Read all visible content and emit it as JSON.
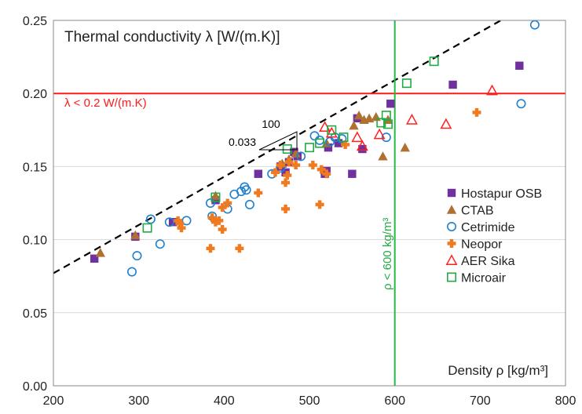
{
  "chart_data": {
    "type": "scatter",
    "title": "Thermal conductivity λ [W/(m.K)]",
    "xlabel": "Density ρ [kg/m³]",
    "ylabel": "",
    "xlim": [
      200,
      800
    ],
    "ylim": [
      0,
      0.25
    ],
    "x_ticks": [
      "200",
      "300",
      "400",
      "500",
      "600",
      "700",
      "800"
    ],
    "y_ticks": [
      "0.00",
      "0.05",
      "0.10",
      "0.15",
      "0.20",
      "0.25"
    ],
    "grid": "horizontal",
    "legend_position": "right",
    "annotations": {
      "h_line": {
        "y": 0.2,
        "label": "λ < 0.2 W/(m.K)",
        "color": "#ff1a1a"
      },
      "v_line": {
        "x": 600,
        "label": "ρ < 600 kg/m³",
        "color": "#22bb44"
      },
      "trend_line": {
        "from": [
          200,
          0.077
        ],
        "to": [
          800,
          0.275
        ],
        "color": "#000000"
      },
      "slope_run": "100",
      "slope_rise": "0.033"
    },
    "series": [
      {
        "name": "Hostapur OSB",
        "marker": "square",
        "color": "#7030a0",
        "points": [
          [
            248,
            0.087
          ],
          [
            296,
            0.102
          ],
          [
            340,
            0.112
          ],
          [
            390,
            0.127
          ],
          [
            440,
            0.145
          ],
          [
            466,
            0.15
          ],
          [
            472,
            0.146
          ],
          [
            476,
            0.153
          ],
          [
            482,
            0.16
          ],
          [
            486,
            0.157
          ],
          [
            518,
            0.145
          ],
          [
            520,
            0.147
          ],
          [
            522,
            0.163
          ],
          [
            534,
            0.166
          ],
          [
            550,
            0.145
          ],
          [
            556,
            0.183
          ],
          [
            562,
            0.162
          ],
          [
            595,
            0.193
          ],
          [
            668,
            0.206
          ],
          [
            746,
            0.219
          ]
        ]
      },
      {
        "name": "CTAB",
        "marker": "triangle",
        "color": "#b07030",
        "points": [
          [
            255,
            0.091
          ],
          [
            296,
            0.103
          ],
          [
            390,
            0.13
          ],
          [
            468,
            0.152
          ],
          [
            476,
            0.155
          ],
          [
            484,
            0.159
          ],
          [
            520,
            0.166
          ],
          [
            552,
            0.178
          ],
          [
            558,
            0.185
          ],
          [
            564,
            0.182
          ],
          [
            570,
            0.183
          ],
          [
            578,
            0.184
          ],
          [
            586,
            0.157
          ],
          [
            592,
            0.182
          ],
          [
            612,
            0.163
          ]
        ]
      },
      {
        "name": "Cetrimide",
        "marker": "circle",
        "color": "#2080d0",
        "points": [
          [
            292,
            0.078
          ],
          [
            298,
            0.089
          ],
          [
            314,
            0.114
          ],
          [
            325,
            0.097
          ],
          [
            336,
            0.112
          ],
          [
            356,
            0.113
          ],
          [
            384,
            0.125
          ],
          [
            386,
            0.116
          ],
          [
            404,
            0.121
          ],
          [
            412,
            0.131
          ],
          [
            420,
            0.133
          ],
          [
            424,
            0.136
          ],
          [
            426,
            0.134
          ],
          [
            430,
            0.124
          ],
          [
            456,
            0.145
          ],
          [
            466,
            0.149
          ],
          [
            490,
            0.157
          ],
          [
            506,
            0.171
          ],
          [
            512,
            0.168
          ],
          [
            524,
            0.167
          ],
          [
            530,
            0.17
          ],
          [
            538,
            0.169
          ],
          [
            590,
            0.17
          ],
          [
            748,
            0.193
          ],
          [
            764,
            0.247
          ]
        ]
      },
      {
        "name": "Neopor",
        "marker": "cross",
        "color": "#f07a20",
        "points": [
          [
            346,
            0.113
          ],
          [
            348,
            0.111
          ],
          [
            350,
            0.108
          ],
          [
            384,
            0.094
          ],
          [
            386,
            0.115
          ],
          [
            390,
            0.112
          ],
          [
            394,
            0.113
          ],
          [
            398,
            0.107
          ],
          [
            398,
            0.122
          ],
          [
            404,
            0.125
          ],
          [
            418,
            0.094
          ],
          [
            440,
            0.132
          ],
          [
            460,
            0.146
          ],
          [
            466,
            0.151
          ],
          [
            472,
            0.121
          ],
          [
            472,
            0.139
          ],
          [
            474,
            0.144
          ],
          [
            476,
            0.153
          ],
          [
            484,
            0.151
          ],
          [
            504,
            0.151
          ],
          [
            512,
            0.124
          ],
          [
            514,
            0.148
          ],
          [
            520,
            0.145
          ],
          [
            542,
            0.165
          ],
          [
            696,
            0.187
          ]
        ]
      },
      {
        "name": "AER Sika",
        "marker": "triangle-open",
        "color": "#ff2020",
        "points": [
          [
            518,
            0.177
          ],
          [
            526,
            0.173
          ],
          [
            556,
            0.17
          ],
          [
            562,
            0.164
          ],
          [
            582,
            0.172
          ],
          [
            620,
            0.182
          ],
          [
            660,
            0.179
          ],
          [
            714,
            0.202
          ]
        ]
      },
      {
        "name": "Microair",
        "marker": "square-open",
        "color": "#22aa44",
        "points": [
          [
            310,
            0.108
          ],
          [
            390,
            0.129
          ],
          [
            474,
            0.162
          ],
          [
            500,
            0.163
          ],
          [
            512,
            0.166
          ],
          [
            526,
            0.175
          ],
          [
            540,
            0.17
          ],
          [
            584,
            0.18
          ],
          [
            590,
            0.185
          ],
          [
            592,
            0.179
          ],
          [
            614,
            0.207
          ],
          [
            646,
            0.222
          ]
        ]
      }
    ]
  }
}
